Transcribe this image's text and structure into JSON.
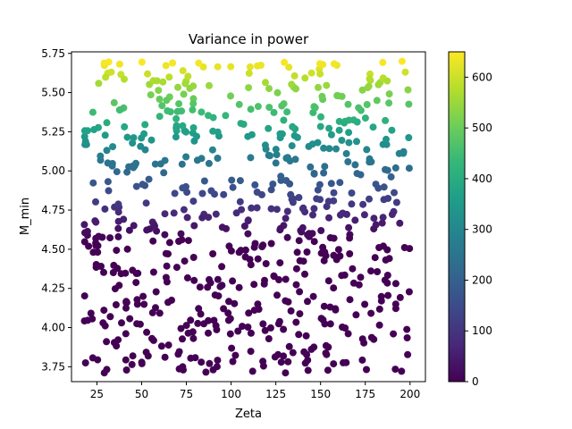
{
  "chart_data": {
    "type": "scatter",
    "title": "Variance in power",
    "xlabel": "Zeta",
    "ylabel": "M_min",
    "xlim": [
      10.8,
      208.6
    ],
    "ylim": [
      3.655,
      5.76
    ],
    "x_ticks": [
      25,
      50,
      75,
      100,
      125,
      150,
      175,
      200
    ],
    "y_ticks": [
      3.75,
      4.0,
      4.25,
      4.5,
      4.75,
      5.0,
      5.25,
      5.5,
      5.75
    ],
    "y_tick_labels": [
      "3.75",
      "4.00",
      "4.25",
      "4.50",
      "4.75",
      "5.00",
      "5.25",
      "5.50",
      "5.75"
    ],
    "grid": false,
    "colormap": "viridis",
    "color_range": [
      0,
      650
    ],
    "colorbar_ticks": [
      0,
      100,
      200,
      300,
      400,
      500,
      600
    ],
    "colorbar_colors": [
      "#440154",
      "#482878",
      "#3e4989",
      "#31688e",
      "#26828e",
      "#1f9e89",
      "#35b779",
      "#6ece58",
      "#b5de2b",
      "#fde725"
    ],
    "point_generation": {
      "count": 700,
      "x_range": [
        18,
        200
      ],
      "y_range": [
        3.71,
        5.7
      ],
      "seed": 7
    },
    "color_rule": "value = 650 * clamp((y - 4.55) / 1.15, 0, 1)^1.15 (darkest purple below 4.55)"
  }
}
